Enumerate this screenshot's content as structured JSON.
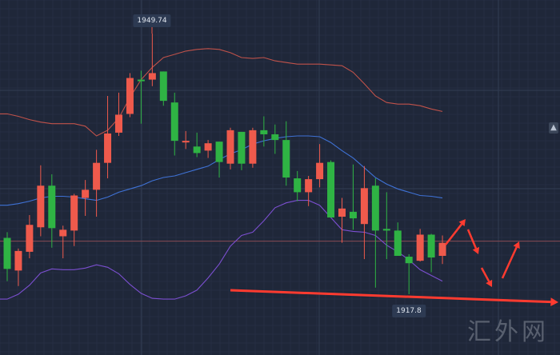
{
  "chart_data": {
    "type": "candlestick",
    "title": "",
    "xlabel": "",
    "ylabel": "",
    "ylim": [
      1915.3,
      1953.9
    ],
    "grid": true,
    "colors": {
      "background": "#1f2739",
      "up": "#ef5a4c",
      "down": "#2fb344",
      "upper_band": "#c0524a",
      "middle_band": "#3f72d6",
      "lower_band": "#7b4fd0",
      "price_line": "#8a4b55",
      "annotation": "#ff3b30"
    },
    "candles": [
      {
        "o": 1924.7,
        "h": 1925.4,
        "l": 1919.4,
        "c": 1920.9
      },
      {
        "o": 1920.7,
        "h": 1923.4,
        "l": 1918.8,
        "c": 1923.1
      },
      {
        "o": 1923.0,
        "h": 1927.5,
        "l": 1922.2,
        "c": 1926.3
      },
      {
        "o": 1926.0,
        "h": 1933.6,
        "l": 1924.9,
        "c": 1931.1
      },
      {
        "o": 1931.1,
        "h": 1932.5,
        "l": 1923.5,
        "c": 1925.9
      },
      {
        "o": 1924.9,
        "h": 1926.2,
        "l": 1922.2,
        "c": 1925.7
      },
      {
        "o": 1925.6,
        "h": 1930.1,
        "l": 1923.7,
        "c": 1929.9
      },
      {
        "o": 1929.6,
        "h": 1931.8,
        "l": 1927.4,
        "c": 1930.6
      },
      {
        "o": 1930.6,
        "h": 1935.5,
        "l": 1927.3,
        "c": 1933.9
      },
      {
        "o": 1933.9,
        "h": 1942.1,
        "l": 1932.0,
        "c": 1937.5
      },
      {
        "o": 1937.6,
        "h": 1942.5,
        "l": 1937.2,
        "c": 1939.8
      },
      {
        "o": 1939.9,
        "h": 1944.9,
        "l": 1939.5,
        "c": 1944.3
      },
      {
        "o": 1944.1,
        "h": 1945.2,
        "l": 1938.7,
        "c": 1944.0
      },
      {
        "o": 1944.1,
        "h": 1949.74,
        "l": 1943.3,
        "c": 1944.9
      },
      {
        "o": 1945.1,
        "h": 1945.1,
        "l": 1940.9,
        "c": 1941.5
      },
      {
        "o": 1941.3,
        "h": 1942.5,
        "l": 1934.8,
        "c": 1936.6
      },
      {
        "o": 1936.4,
        "h": 1937.8,
        "l": 1935.6,
        "c": 1936.6
      },
      {
        "o": 1935.9,
        "h": 1937.6,
        "l": 1934.6,
        "c": 1935.1
      },
      {
        "o": 1935.4,
        "h": 1936.7,
        "l": 1934.5,
        "c": 1936.3
      },
      {
        "o": 1936.5,
        "h": 1936.5,
        "l": 1932.1,
        "c": 1934.0
      },
      {
        "o": 1933.8,
        "h": 1938.2,
        "l": 1933.1,
        "c": 1937.9
      },
      {
        "o": 1937.7,
        "h": 1937.7,
        "l": 1933.0,
        "c": 1933.8
      },
      {
        "o": 1933.8,
        "h": 1938.2,
        "l": 1933.3,
        "c": 1937.9
      },
      {
        "o": 1937.9,
        "h": 1939.6,
        "l": 1935.9,
        "c": 1937.4
      },
      {
        "o": 1937.4,
        "h": 1938.6,
        "l": 1935.0,
        "c": 1936.7
      },
      {
        "o": 1936.7,
        "h": 1939.0,
        "l": 1931.1,
        "c": 1932.1
      },
      {
        "o": 1932.0,
        "h": 1932.9,
        "l": 1929.2,
        "c": 1930.3
      },
      {
        "o": 1930.3,
        "h": 1932.3,
        "l": 1928.6,
        "c": 1931.9
      },
      {
        "o": 1931.9,
        "h": 1936.2,
        "l": 1930.9,
        "c": 1933.9
      },
      {
        "o": 1934.0,
        "h": 1934.2,
        "l": 1927.2,
        "c": 1927.2
      },
      {
        "o": 1927.3,
        "h": 1929.6,
        "l": 1924.1,
        "c": 1928.3
      },
      {
        "o": 1927.9,
        "h": 1933.7,
        "l": 1925.7,
        "c": 1927.1
      },
      {
        "o": 1926.4,
        "h": 1933.5,
        "l": 1922.1,
        "c": 1930.8
      },
      {
        "o": 1931.1,
        "h": 1932.0,
        "l": 1918.6,
        "c": 1925.6
      },
      {
        "o": 1925.8,
        "h": 1930.3,
        "l": 1922.1,
        "c": 1925.6
      },
      {
        "o": 1925.6,
        "h": 1926.6,
        "l": 1922.5,
        "c": 1922.5
      },
      {
        "o": 1922.4,
        "h": 1922.7,
        "l": 1917.8,
        "c": 1921.6
      },
      {
        "o": 1921.9,
        "h": 1925.8,
        "l": 1921.8,
        "c": 1925.1
      },
      {
        "o": 1925.1,
        "h": 1925.2,
        "l": 1920.5,
        "c": 1922.3
      },
      {
        "o": 1922.5,
        "h": 1925.0,
        "l": 1921.5,
        "c": 1924.1
      }
    ],
    "bands": {
      "upper": [
        1939.9,
        1939.6,
        1939.2,
        1938.9,
        1938.7,
        1938.7,
        1938.7,
        1938.4,
        1937.2,
        1937.9,
        1939.4,
        1941.9,
        1944.1,
        1945.6,
        1946.8,
        1947.2,
        1947.6,
        1947.8,
        1947.9,
        1947.8,
        1947.4,
        1946.8,
        1946.7,
        1946.8,
        1946.4,
        1946.2,
        1946.0,
        1946.0,
        1946.0,
        1945.9,
        1945.8,
        1945.0,
        1943.6,
        1942.1,
        1941.3,
        1941.1,
        1941.1,
        1940.9,
        1940.5,
        1940.2
      ],
      "middle": [
        1928.7,
        1928.9,
        1929.2,
        1929.6,
        1929.8,
        1929.8,
        1929.7,
        1929.5,
        1929.3,
        1929.7,
        1930.3,
        1930.7,
        1931.1,
        1931.7,
        1932.1,
        1932.3,
        1932.7,
        1933.1,
        1933.5,
        1934.3,
        1935.0,
        1935.5,
        1936.2,
        1936.6,
        1936.9,
        1937.1,
        1937.2,
        1937.2,
        1937.1,
        1936.4,
        1935.4,
        1934.5,
        1933.3,
        1932.1,
        1931.3,
        1930.7,
        1930.3,
        1929.9,
        1929.8,
        1929.6
      ],
      "lower": [
        1917.2,
        1917.8,
        1918.9,
        1920.4,
        1920.9,
        1920.8,
        1920.8,
        1921.0,
        1921.4,
        1921.1,
        1920.3,
        1919.0,
        1917.9,
        1917.3,
        1917.2,
        1917.2,
        1917.6,
        1918.3,
        1919.8,
        1921.5,
        1923.7,
        1925.0,
        1925.4,
        1926.8,
        1928.4,
        1929.0,
        1929.3,
        1929.3,
        1928.7,
        1927.2,
        1925.7,
        1925.5,
        1925.4,
        1925.0,
        1923.8,
        1923.0,
        1922.0,
        1920.8,
        1920.1,
        1919.4
      ]
    },
    "current_price": 1924.3,
    "annotations": {
      "high_label": "1949.74",
      "low_label": "1917.8"
    }
  },
  "watermark": "汇外网",
  "icons": {
    "alert": "bell-icon"
  }
}
